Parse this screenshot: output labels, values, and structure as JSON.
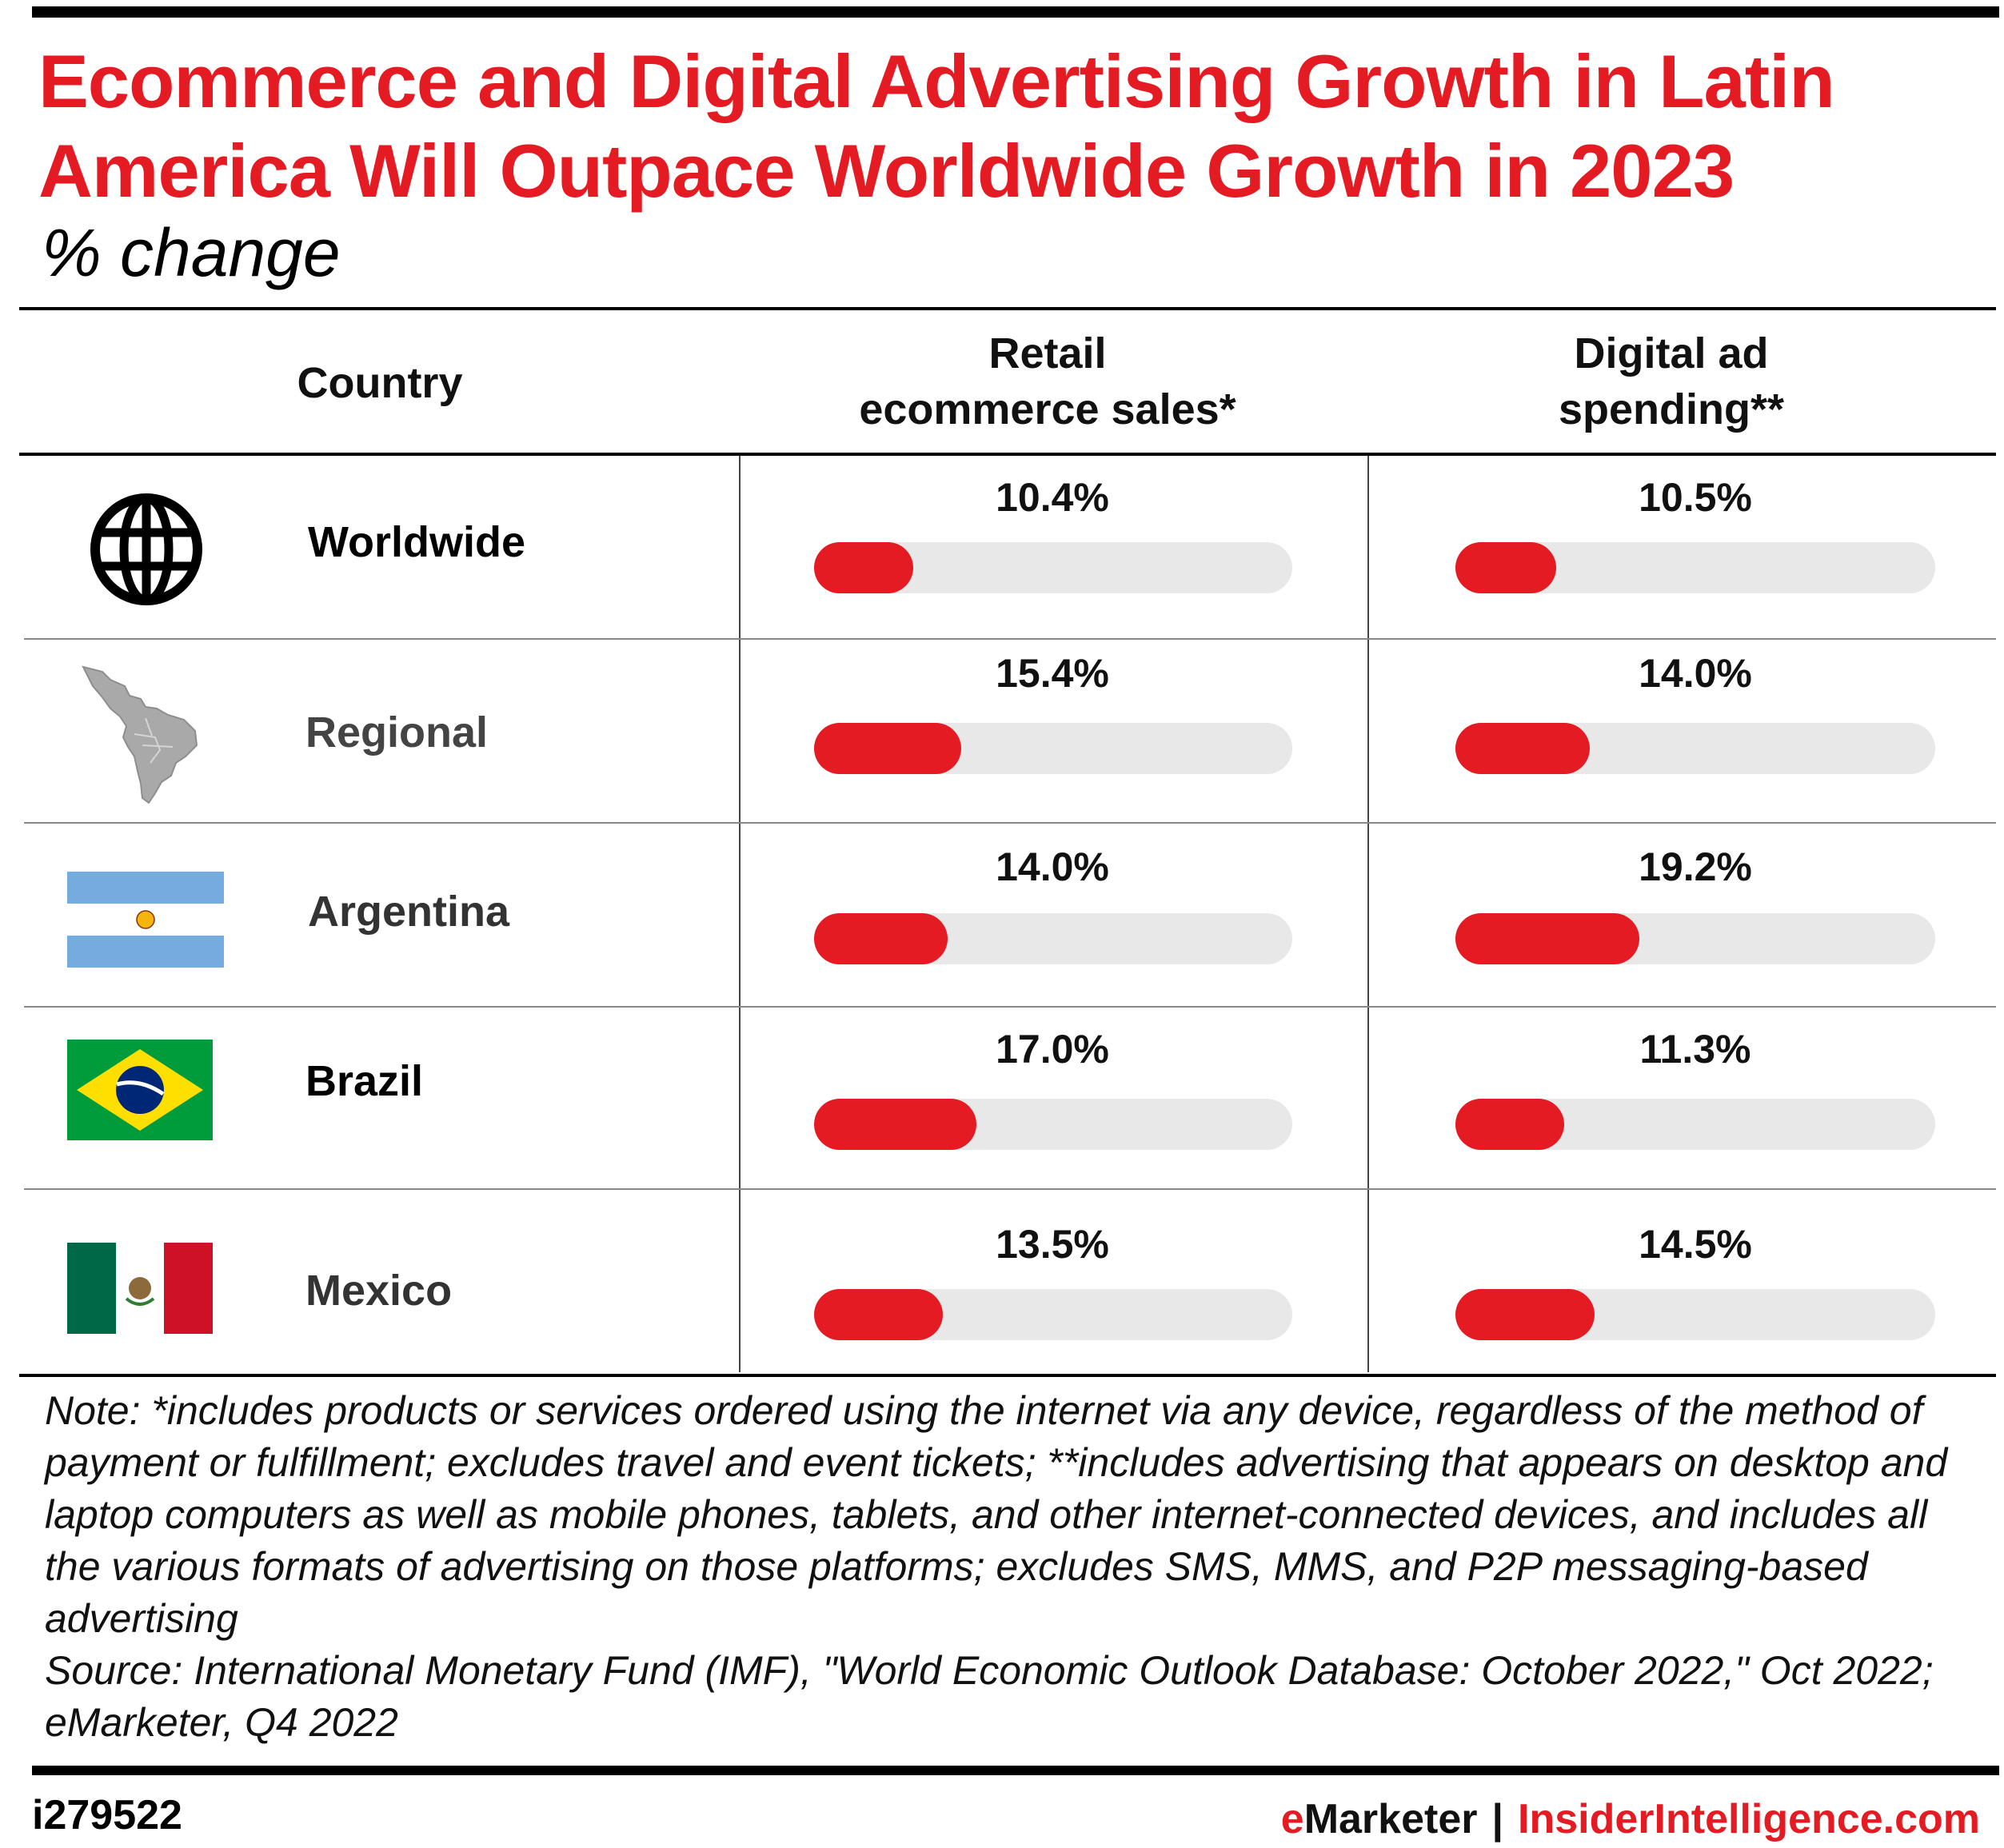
{
  "title": "Ecommerce and Digital Advertising Growth in Latin America Will Outpace Worldwide Growth in 2023",
  "subtitle": "% change",
  "headers": {
    "country": "Country",
    "retail": "Retail\necommerce sales*",
    "digital": "Digital ad\nspending**"
  },
  "icons": [
    "globe-icon",
    "latin-america-map-icon",
    "argentina-flag-icon",
    "brazil-flag-icon",
    "mexico-flag-icon"
  ],
  "chart_data": {
    "type": "bar",
    "categories": [
      "Worldwide",
      "Regional",
      "Argentina",
      "Brazil",
      "Mexico"
    ],
    "series": [
      {
        "name": "Retail ecommerce sales*",
        "values": [
          10.4,
          15.4,
          14.0,
          17.0,
          13.5
        ],
        "labels": [
          "10.4%",
          "15.4%",
          "14.0%",
          "17.0%",
          "13.5%"
        ]
      },
      {
        "name": "Digital ad spending**",
        "values": [
          10.5,
          14.0,
          19.2,
          11.3,
          14.5
        ],
        "labels": [
          "10.5%",
          "14.0%",
          "19.2%",
          "11.3%",
          "14.5%"
        ]
      }
    ],
    "ylim": [
      0,
      50
    ],
    "colors": {
      "bar": "#e41b23",
      "track": "#e8e8e8"
    }
  },
  "note": "Note: *includes products or services ordered using the internet via any device, regardless of the method of payment or fulfillment; excludes travel and event tickets; **includes advertising that appears on desktop and laptop computers as well as mobile phones, tablets, and other internet-connected devices, and includes all the various formats of advertising on those platforms; excludes SMS, MMS, and P2P messaging-based advertising",
  "source": "Source: International Monetary Fund (IMF), \"World Economic Outlook Database: October 2022,\" Oct 2022; eMarketer, Q4 2022",
  "footer": {
    "id": "i279522",
    "brand_e": "e",
    "brand_marketer": "Marketer",
    "separator": "|",
    "brand_site": "InsiderIntelligence.com"
  },
  "colors": {
    "accent": "#e41b23"
  }
}
